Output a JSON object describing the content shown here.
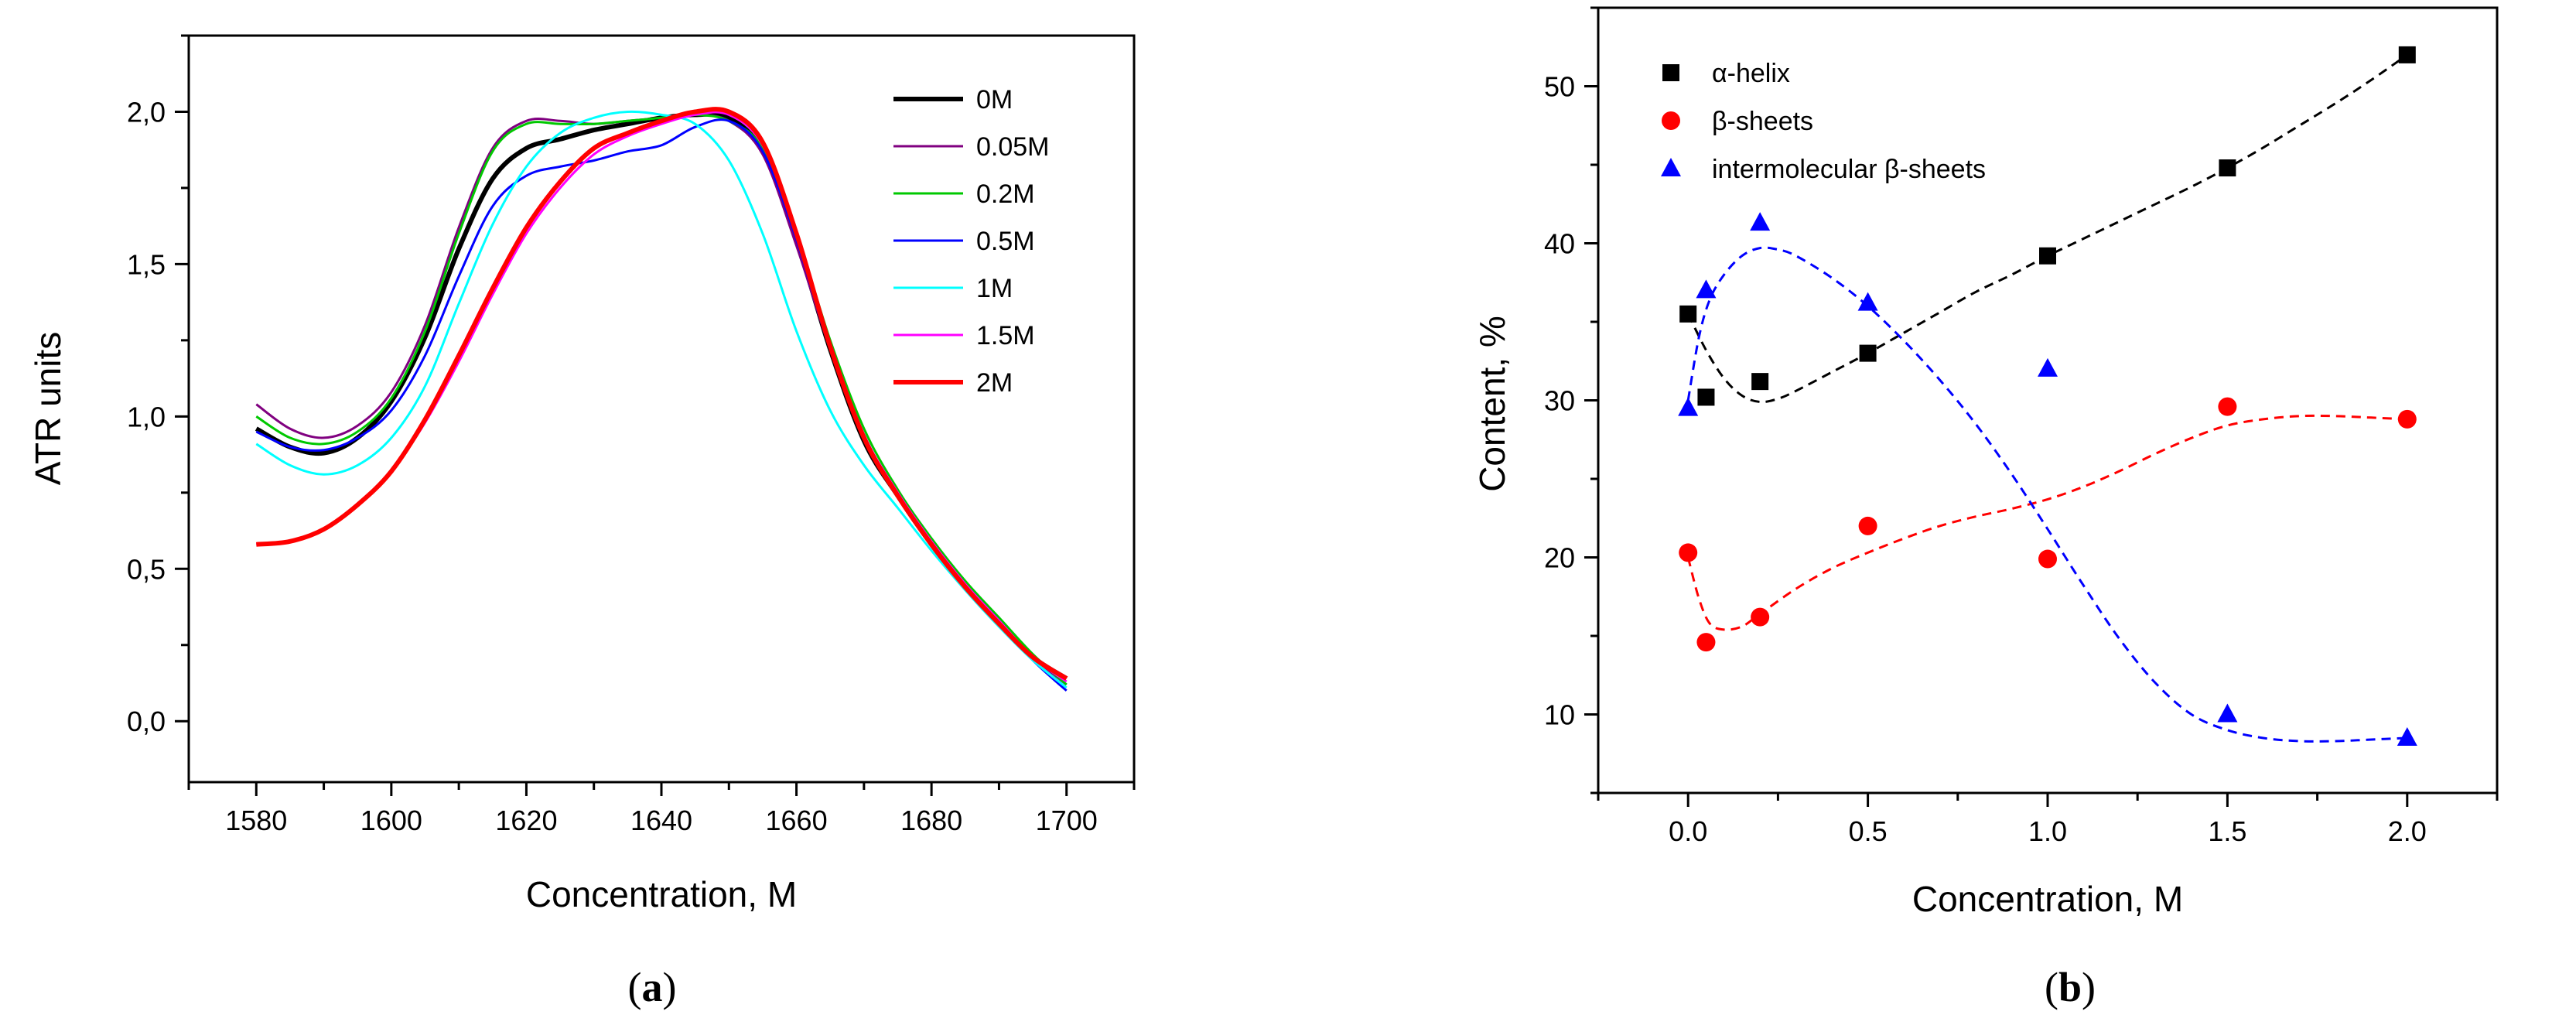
{
  "chart_data": [
    {
      "type": "line",
      "panel_label": "(a)",
      "panel_letter": "a",
      "xlabel": "Concentration, M",
      "ylabel": "ATR units",
      "xlim": [
        1570,
        1710
      ],
      "ylim": [
        -0.2,
        2.25
      ],
      "x_ticks": [
        1580,
        1600,
        1620,
        1640,
        1660,
        1680,
        1700
      ],
      "x_tick_labels": [
        "1580",
        "1600",
        "1620",
        "1640",
        "1660",
        "1680",
        "1700"
      ],
      "y_ticks": [
        0.0,
        0.5,
        1.0,
        1.5,
        2.0
      ],
      "y_tick_labels": [
        "0,0",
        "0,5",
        "1,0",
        "1,5",
        "2,0"
      ],
      "legend_position": "top-right",
      "series": [
        {
          "name": "0M",
          "color": "#000000",
          "bold": true,
          "x": [
            1580,
            1585,
            1590,
            1595,
            1600,
            1605,
            1610,
            1615,
            1620,
            1625,
            1630,
            1635,
            1640,
            1645,
            1650,
            1655,
            1660,
            1665,
            1670,
            1675,
            1680,
            1685,
            1690,
            1695,
            1700
          ],
          "y": [
            0.96,
            0.9,
            0.88,
            0.93,
            1.05,
            1.26,
            1.55,
            1.78,
            1.88,
            1.91,
            1.94,
            1.96,
            1.98,
            1.99,
            1.98,
            1.87,
            1.58,
            1.22,
            0.92,
            0.74,
            0.58,
            0.44,
            0.32,
            0.21,
            0.14
          ]
        },
        {
          "name": "0.05M",
          "color": "#800080",
          "bold": false,
          "x": [
            1580,
            1585,
            1590,
            1595,
            1600,
            1605,
            1610,
            1615,
            1620,
            1625,
            1630,
            1635,
            1640,
            1645,
            1650,
            1655,
            1660,
            1665,
            1670,
            1675,
            1680,
            1685,
            1690,
            1695,
            1700
          ],
          "y": [
            1.04,
            0.96,
            0.93,
            0.97,
            1.08,
            1.3,
            1.62,
            1.88,
            1.97,
            1.97,
            1.96,
            1.97,
            1.98,
            1.99,
            1.97,
            1.86,
            1.56,
            1.22,
            0.93,
            0.74,
            0.58,
            0.44,
            0.32,
            0.21,
            0.12
          ]
        },
        {
          "name": "0.2M",
          "color": "#00c800",
          "bold": false,
          "x": [
            1580,
            1585,
            1590,
            1595,
            1600,
            1605,
            1610,
            1615,
            1620,
            1625,
            1630,
            1635,
            1640,
            1645,
            1650,
            1655,
            1660,
            1665,
            1670,
            1675,
            1680,
            1685,
            1690,
            1695,
            1700
          ],
          "y": [
            1.0,
            0.93,
            0.91,
            0.95,
            1.06,
            1.28,
            1.6,
            1.87,
            1.96,
            1.96,
            1.96,
            1.97,
            1.98,
            1.99,
            1.97,
            1.88,
            1.6,
            1.25,
            0.96,
            0.76,
            0.6,
            0.46,
            0.34,
            0.22,
            0.12
          ]
        },
        {
          "name": "0.5M",
          "color": "#0000ff",
          "bold": false,
          "x": [
            1580,
            1585,
            1590,
            1595,
            1600,
            1605,
            1610,
            1615,
            1620,
            1625,
            1630,
            1635,
            1640,
            1645,
            1650,
            1655,
            1660,
            1665,
            1670,
            1675,
            1680,
            1685,
            1690,
            1695,
            1700
          ],
          "y": [
            0.95,
            0.9,
            0.89,
            0.93,
            1.02,
            1.2,
            1.46,
            1.69,
            1.79,
            1.82,
            1.84,
            1.87,
            1.89,
            1.95,
            1.97,
            1.87,
            1.58,
            1.22,
            0.94,
            0.74,
            0.58,
            0.44,
            0.32,
            0.2,
            0.1
          ]
        },
        {
          "name": "1M",
          "color": "#00ffff",
          "bold": false,
          "x": [
            1580,
            1585,
            1590,
            1595,
            1600,
            1605,
            1610,
            1615,
            1620,
            1625,
            1630,
            1635,
            1640,
            1645,
            1650,
            1655,
            1660,
            1665,
            1670,
            1675,
            1680,
            1685,
            1690,
            1695,
            1700
          ],
          "y": [
            0.91,
            0.84,
            0.81,
            0.84,
            0.93,
            1.1,
            1.37,
            1.63,
            1.82,
            1.93,
            1.98,
            2.0,
            1.99,
            1.96,
            1.84,
            1.6,
            1.28,
            1.02,
            0.84,
            0.7,
            0.56,
            0.43,
            0.31,
            0.2,
            0.11
          ]
        },
        {
          "name": "1.5M",
          "color": "#ff00ff",
          "bold": false,
          "x": [
            1580,
            1585,
            1590,
            1595,
            1600,
            1605,
            1610,
            1615,
            1620,
            1625,
            1630,
            1635,
            1640,
            1645,
            1650,
            1655,
            1660,
            1665,
            1670,
            1675,
            1680,
            1685,
            1690,
            1695,
            1700
          ],
          "y": [
            0.58,
            0.59,
            0.63,
            0.71,
            0.82,
            0.98,
            1.18,
            1.4,
            1.6,
            1.75,
            1.86,
            1.92,
            1.96,
            1.99,
            1.99,
            1.89,
            1.6,
            1.24,
            0.94,
            0.75,
            0.59,
            0.45,
            0.33,
            0.21,
            0.13
          ]
        },
        {
          "name": "2M",
          "color": "#ff0000",
          "bold": true,
          "x": [
            1580,
            1585,
            1590,
            1595,
            1600,
            1605,
            1610,
            1615,
            1620,
            1625,
            1630,
            1635,
            1640,
            1645,
            1650,
            1655,
            1660,
            1665,
            1670,
            1675,
            1680,
            1685,
            1690,
            1695,
            1700
          ],
          "y": [
            0.58,
            0.59,
            0.63,
            0.71,
            0.82,
            0.99,
            1.2,
            1.42,
            1.62,
            1.77,
            1.88,
            1.93,
            1.97,
            2.0,
            2.0,
            1.9,
            1.6,
            1.23,
            0.93,
            0.74,
            0.58,
            0.44,
            0.32,
            0.21,
            0.14
          ]
        }
      ]
    },
    {
      "type": "scatter",
      "panel_label": "(b)",
      "panel_letter": "b",
      "xlabel": "Concentration, M",
      "ylabel": "Content, %",
      "xlim": [
        -0.25,
        2.25
      ],
      "ylim": [
        5,
        55
      ],
      "x_ticks": [
        0.0,
        0.5,
        1.0,
        1.5,
        2.0
      ],
      "x_tick_labels": [
        "0.0",
        "0.5",
        "1.0",
        "1.5",
        "2.0"
      ],
      "y_ticks": [
        10,
        20,
        30,
        40,
        50
      ],
      "y_tick_labels": [
        "10",
        "20",
        "30",
        "40",
        "50"
      ],
      "legend_position": "top-left",
      "series": [
        {
          "name": "α-helix",
          "color": "#000000",
          "marker": "square",
          "x": [
            0.0,
            0.05,
            0.2,
            0.5,
            1.0,
            1.5,
            2.0
          ],
          "y": [
            35.5,
            30.2,
            31.2,
            33.0,
            39.2,
            44.8,
            52.0
          ],
          "fit_x": [
            0.0,
            0.05,
            0.1,
            0.15,
            0.2,
            0.25,
            0.3,
            0.4,
            0.5,
            0.6,
            0.7,
            0.8,
            0.9,
            1.0,
            1.1,
            1.2,
            1.3,
            1.4,
            1.5,
            1.6,
            1.7,
            1.8,
            1.9,
            2.0
          ],
          "fit_y": [
            35.5,
            33.2,
            31.4,
            30.3,
            29.9,
            30.1,
            30.6,
            31.8,
            33.0,
            34.3,
            35.6,
            36.9,
            38.0,
            39.2,
            40.3,
            41.4,
            42.5,
            43.6,
            44.8,
            46.1,
            47.5,
            48.9,
            50.4,
            52.0
          ]
        },
        {
          "name": "β-sheets",
          "color": "#ff0000",
          "marker": "circle",
          "x": [
            0.0,
            0.05,
            0.2,
            0.5,
            1.0,
            1.5,
            2.0
          ],
          "y": [
            20.3,
            14.6,
            16.2,
            22.0,
            19.9,
            29.6,
            28.8
          ],
          "fit_x": [
            0.0,
            0.03,
            0.06,
            0.1,
            0.15,
            0.2,
            0.3,
            0.4,
            0.5,
            0.6,
            0.7,
            0.8,
            0.9,
            1.0,
            1.1,
            1.2,
            1.3,
            1.4,
            1.5,
            1.6,
            1.7,
            1.8,
            1.9,
            2.0
          ],
          "fit_y": [
            20.0,
            17.4,
            15.8,
            15.4,
            15.6,
            16.4,
            18.0,
            19.3,
            20.3,
            21.2,
            22.0,
            22.6,
            23.1,
            23.7,
            24.5,
            25.5,
            26.6,
            27.6,
            28.4,
            28.8,
            29.0,
            29.0,
            28.9,
            28.8
          ]
        },
        {
          "name": "intermolecular β-sheets",
          "color": "#0000ff",
          "marker": "triangle",
          "x": [
            0.0,
            0.05,
            0.2,
            0.5,
            1.0,
            1.5,
            2.0
          ],
          "y": [
            29.5,
            37.0,
            41.3,
            36.2,
            32.0,
            10.0,
            8.5
          ],
          "fit_x": [
            0.0,
            0.03,
            0.06,
            0.1,
            0.15,
            0.2,
            0.25,
            0.3,
            0.4,
            0.5,
            0.6,
            0.7,
            0.8,
            0.9,
            1.0,
            1.1,
            1.2,
            1.3,
            1.4,
            1.5,
            1.6,
            1.7,
            1.8,
            1.9,
            2.0
          ],
          "fit_y": [
            30.0,
            34.0,
            36.4,
            38.0,
            39.2,
            39.7,
            39.6,
            39.2,
            37.8,
            36.0,
            33.8,
            31.3,
            28.5,
            25.3,
            21.8,
            18.2,
            14.8,
            12.0,
            10.0,
            9.0,
            8.5,
            8.3,
            8.3,
            8.4,
            8.5
          ]
        }
      ]
    }
  ]
}
